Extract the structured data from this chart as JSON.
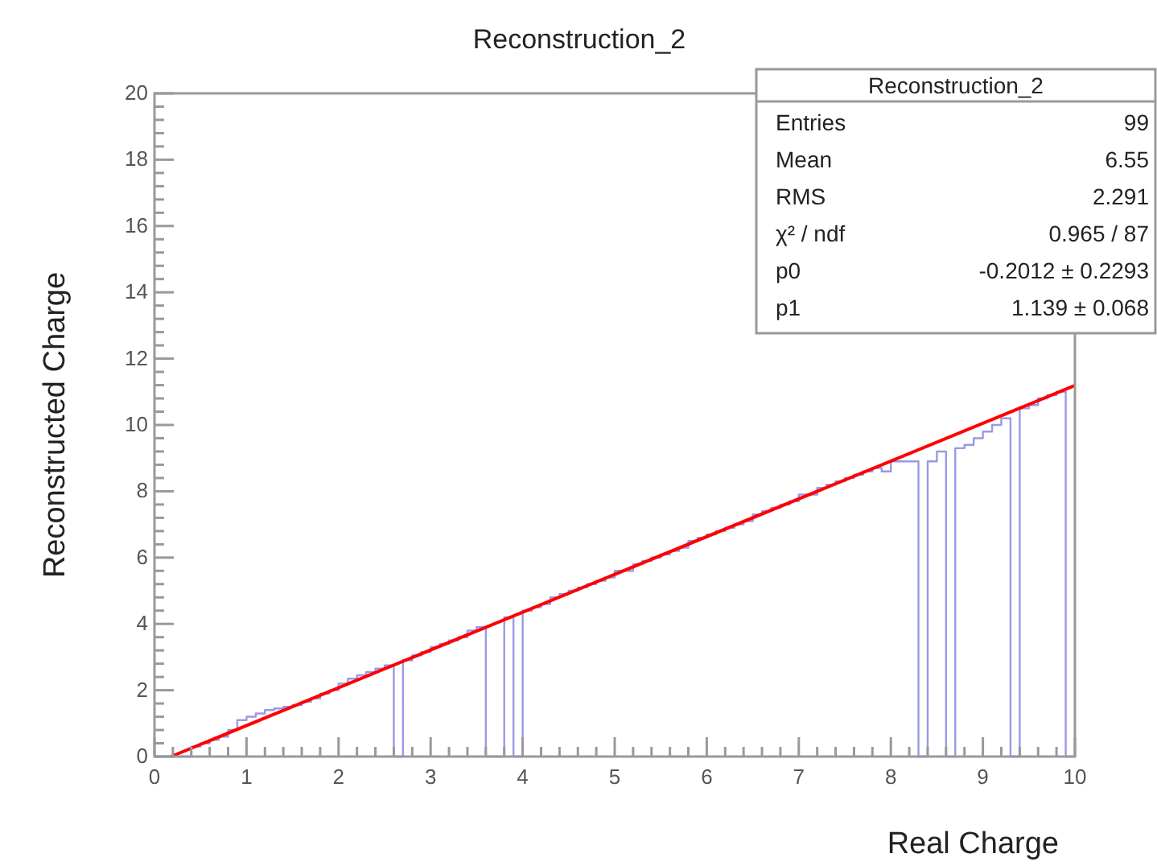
{
  "chart_data": {
    "type": "histogram",
    "title": "Reconstruction_2",
    "xlabel": "Real Charge",
    "ylabel": "Reconstructed Charge",
    "xlim": [
      0,
      10
    ],
    "ylim": [
      0,
      20
    ],
    "xticks": [
      0,
      {
        "value": 0.2,
        "label": null
      },
      {
        "value": 0.4,
        "label": null
      },
      {
        "value": 0.6,
        "label": null
      },
      {
        "value": 0.8,
        "label": null
      },
      1,
      {
        "value": 1.2,
        "label": null
      },
      {
        "value": 1.4,
        "label": null
      },
      {
        "value": 1.6,
        "label": null
      },
      {
        "value": 1.8,
        "label": null
      },
      2,
      {
        "value": 2.2,
        "label": null
      },
      {
        "value": 2.4,
        "label": null
      },
      {
        "value": 2.6,
        "label": null
      },
      {
        "value": 2.8,
        "label": null
      },
      3,
      {
        "value": 3.2,
        "label": null
      },
      {
        "value": 3.4,
        "label": null
      },
      {
        "value": 3.6,
        "label": null
      },
      {
        "value": 3.8,
        "label": null
      },
      4,
      {
        "value": 4.2,
        "label": null
      },
      {
        "value": 4.4,
        "label": null
      },
      {
        "value": 4.6,
        "label": null
      },
      {
        "value": 4.8,
        "label": null
      },
      5,
      {
        "value": 5.2,
        "label": null
      },
      {
        "value": 5.4,
        "label": null
      },
      {
        "value": 5.6,
        "label": null
      },
      {
        "value": 5.8,
        "label": null
      },
      6,
      {
        "value": 6.2,
        "label": null
      },
      {
        "value": 6.4,
        "label": null
      },
      {
        "value": 6.6,
        "label": null
      },
      {
        "value": 6.8,
        "label": null
      },
      7,
      {
        "value": 7.2,
        "label": null
      },
      {
        "value": 7.4,
        "label": null
      },
      {
        "value": 7.6,
        "label": null
      },
      {
        "value": 7.8,
        "label": null
      },
      8,
      {
        "value": 8.2,
        "label": null
      },
      {
        "value": 8.4,
        "label": null
      },
      {
        "value": 8.6,
        "label": null
      },
      {
        "value": 8.8,
        "label": null
      },
      9,
      {
        "value": 9.2,
        "label": null
      },
      {
        "value": 9.4,
        "label": null
      },
      {
        "value": 9.6,
        "label": null
      },
      {
        "value": 9.8,
        "label": null
      },
      10
    ],
    "yticks": [
      0,
      {
        "value": 0.4,
        "label": null
      },
      {
        "value": 0.8,
        "label": null
      },
      {
        "value": 1.2,
        "label": null
      },
      {
        "value": 1.6,
        "label": null
      },
      2,
      {
        "value": 2.4,
        "label": null
      },
      {
        "value": 2.8,
        "label": null
      },
      {
        "value": 3.2,
        "label": null
      },
      {
        "value": 3.6,
        "label": null
      },
      4,
      {
        "value": 4.4,
        "label": null
      },
      {
        "value": 4.8,
        "label": null
      },
      {
        "value": 5.2,
        "label": null
      },
      {
        "value": 5.6,
        "label": null
      },
      6,
      {
        "value": 6.4,
        "label": null
      },
      {
        "value": 6.8,
        "label": null
      },
      {
        "value": 7.2,
        "label": null
      },
      {
        "value": 7.6,
        "label": null
      },
      8,
      {
        "value": 8.4,
        "label": null
      },
      {
        "value": 8.8,
        "label": null
      },
      {
        "value": 9.2,
        "label": null
      },
      {
        "value": 9.6,
        "label": null
      },
      10,
      {
        "value": 10.4,
        "label": null
      },
      {
        "value": 10.8,
        "label": null
      },
      {
        "value": 11.2,
        "label": null
      },
      {
        "value": 11.6,
        "label": null
      },
      12,
      {
        "value": 12.4,
        "label": null
      },
      {
        "value": 12.8,
        "label": null
      },
      {
        "value": 13.2,
        "label": null
      },
      {
        "value": 13.6,
        "label": null
      },
      14,
      {
        "value": 14.4,
        "label": null
      },
      {
        "value": 14.8,
        "label": null
      },
      {
        "value": 15.2,
        "label": null
      },
      {
        "value": 15.6,
        "label": null
      },
      16,
      {
        "value": 16.4,
        "label": null
      },
      {
        "value": 16.8,
        "label": null
      },
      {
        "value": 17.2,
        "label": null
      },
      {
        "value": 17.6,
        "label": null
      },
      18,
      {
        "value": 18.4,
        "label": null
      },
      {
        "value": 18.8,
        "label": null
      },
      {
        "value": 19.2,
        "label": null
      },
      {
        "value": 19.6,
        "label": null
      },
      20
    ],
    "grid": false,
    "series": [
      {
        "type": "histogram",
        "color": "#9999e6",
        "bins": [
          0,
          0.1,
          0.2,
          0.3,
          0.4,
          0.5,
          0.6,
          0.7,
          0.8,
          0.9,
          1,
          1.1,
          1.2,
          1.3,
          1.4,
          1.5,
          1.6,
          1.7,
          1.8,
          1.9,
          2,
          2.1,
          2.2,
          2.3,
          2.4,
          2.5,
          2.6,
          2.7,
          2.8,
          2.9,
          3,
          3.1,
          3.2,
          3.3,
          3.4,
          3.5,
          3.6,
          3.7,
          3.8,
          3.9,
          4,
          4.1,
          4.2,
          4.3,
          4.4,
          4.5,
          4.6,
          4.7,
          4.8,
          4.9,
          5,
          5.1,
          5.2,
          5.3,
          5.4,
          5.5,
          5.6,
          5.7,
          5.8,
          5.9,
          6,
          6.1,
          6.2,
          6.3,
          6.4,
          6.5,
          6.6,
          6.7,
          6.8,
          6.9,
          7,
          7.1,
          7.2,
          7.3,
          7.4,
          7.5,
          7.6,
          7.7,
          7.8,
          7.9,
          8,
          8.1,
          8.2,
          8.3,
          8.4,
          8.5,
          8.6,
          8.7,
          8.8,
          8.9,
          9,
          9.1,
          9.2,
          9.3,
          9.4,
          9.5,
          9.6,
          9.7,
          9.8,
          9.9,
          10
        ],
        "values": [
          0,
          0,
          0,
          0,
          0.3,
          0.4,
          0.5,
          0.6,
          0.8,
          1.1,
          1.2,
          1.3,
          1.4,
          1.45,
          1.5,
          1.55,
          1.65,
          1.75,
          1.9,
          2,
          2.2,
          2.35,
          2.45,
          2.55,
          2.65,
          2.75,
          0,
          2.9,
          3.05,
          3.15,
          3.3,
          3.4,
          3.5,
          3.6,
          3.8,
          3.9,
          0,
          0,
          4.2,
          0,
          4.4,
          4.5,
          4.6,
          4.8,
          4.9,
          5,
          5.1,
          5.2,
          5.3,
          5.4,
          5.6,
          5.6,
          5.8,
          5.9,
          6,
          6.1,
          6.2,
          6.3,
          6.5,
          6.6,
          6.7,
          6.8,
          6.9,
          7,
          7.1,
          7.3,
          7.4,
          7.5,
          7.6,
          7.7,
          7.9,
          7.9,
          8.1,
          8.2,
          8.3,
          8.4,
          8.5,
          8.6,
          8.7,
          8.6,
          8.9,
          8.9,
          8.9,
          0,
          8.9,
          9.2,
          0,
          9.3,
          9.4,
          9.6,
          9.8,
          10,
          10.2,
          0,
          10.5,
          10.6,
          10.8,
          10.9,
          11,
          0
        ]
      },
      {
        "type": "line",
        "color": "#ff0000",
        "x": [
          0.18,
          10
        ],
        "values": [
          0,
          11.19
        ]
      }
    ],
    "annotations": [
      "Reconstruction_2",
      "Entries",
      "99",
      "Mean",
      "6.55",
      "RMS",
      "2.291",
      "χ² / ndf",
      "0.965 / 87",
      "p0",
      "-0.2012 ± 0.2293",
      "p1",
      "1.139 ± 0.068"
    ]
  }
}
